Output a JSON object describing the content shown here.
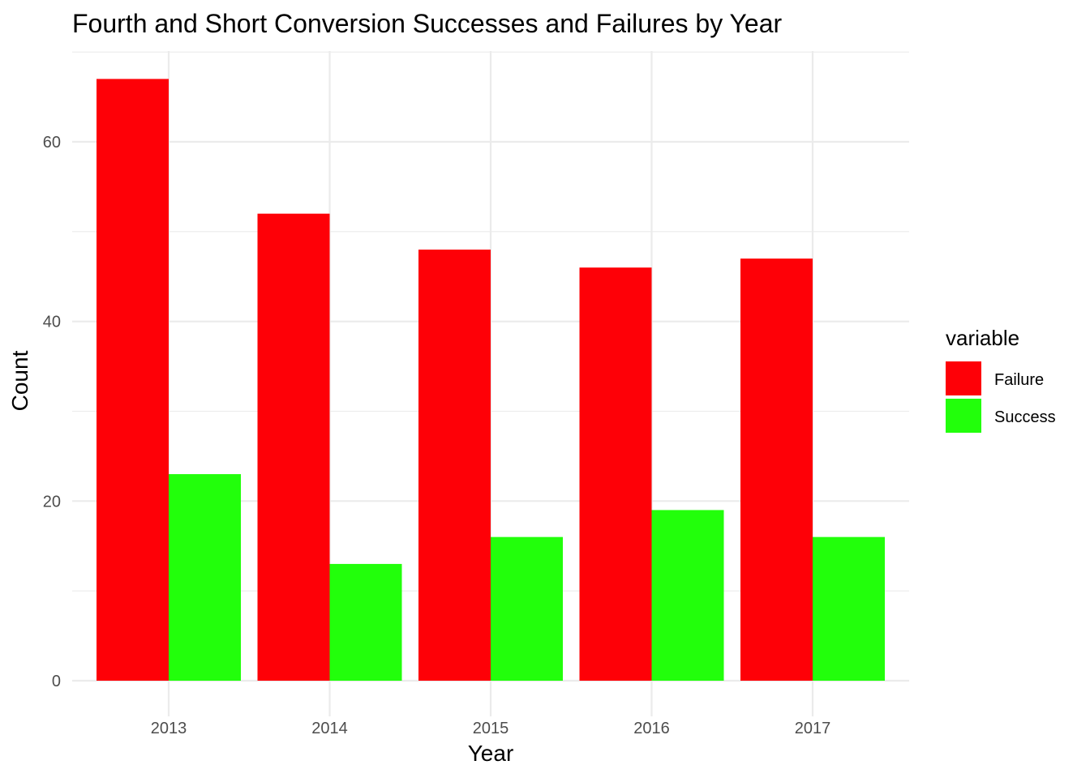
{
  "chart_data": {
    "type": "bar",
    "title": "Fourth and Short Conversion Successes and Failures by Year",
    "xlabel": "Year",
    "ylabel": "Count",
    "categories": [
      "2013",
      "2014",
      "2015",
      "2016",
      "2017"
    ],
    "series": [
      {
        "name": "Failure",
        "values": [
          67,
          52,
          48,
          46,
          47
        ],
        "color": "#fe0007"
      },
      {
        "name": "Success",
        "values": [
          23,
          13,
          16,
          19,
          16
        ],
        "color": "#22ff0b"
      }
    ],
    "ylim": [
      0,
      70
    ],
    "yticks": [
      0,
      20,
      40,
      60
    ],
    "grid": true,
    "legend": {
      "title": "variable",
      "position": "right"
    }
  }
}
